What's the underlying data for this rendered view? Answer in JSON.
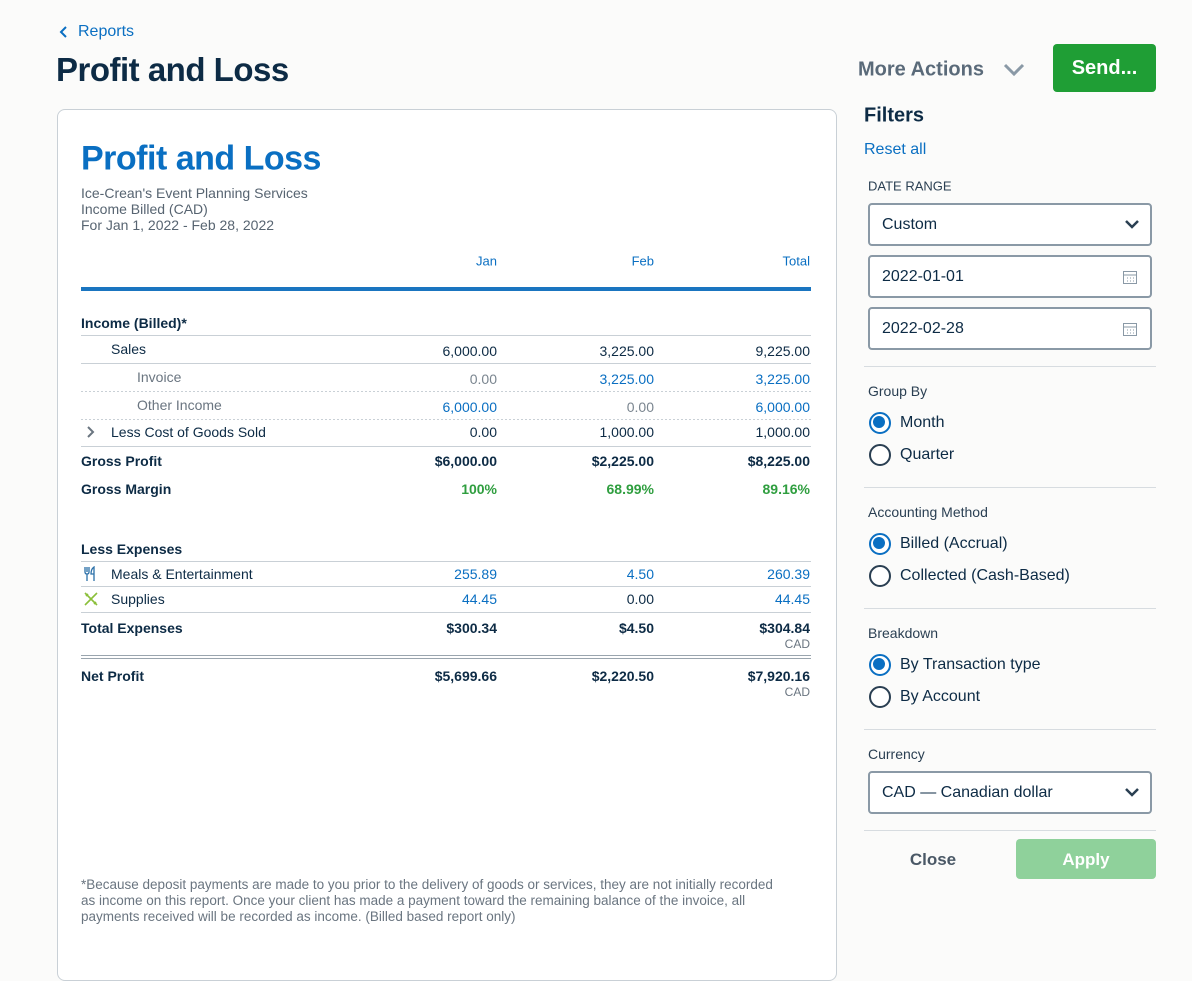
{
  "header": {
    "back_link": "Reports",
    "title": "Profit and Loss",
    "more_actions": "More Actions",
    "send_button": "Send..."
  },
  "report": {
    "title": "Profit and Loss",
    "company": "Ice-Crean's Event Planning Services",
    "basis": "Income Billed (CAD)",
    "period": "For Jan 1, 2022 - Feb 28, 2022",
    "columns": [
      "Jan",
      "Feb",
      "Total"
    ],
    "rows": [
      {
        "label": "Income (Billed)*"
      },
      {
        "label": "Sales",
        "values": [
          "6,000.00",
          "3,225.00",
          "9,225.00"
        ]
      },
      {
        "label": "Invoice",
        "values": [
          "0.00",
          "3,225.00",
          "3,225.00"
        ]
      },
      {
        "label": "Other Income",
        "values": [
          "6,000.00",
          "0.00",
          "6,000.00"
        ]
      },
      {
        "label": "Less Cost of Goods Sold",
        "values": [
          "0.00",
          "1,000.00",
          "1,000.00"
        ]
      },
      {
        "label": "Gross Profit",
        "values": [
          "$6,000.00",
          "$2,225.00",
          "$8,225.00"
        ]
      },
      {
        "label": "Gross Margin",
        "values": [
          "100%",
          "68.99%",
          "89.16%"
        ]
      },
      {
        "label": "Less Expenses"
      },
      {
        "label": "Meals & Entertainment",
        "values": [
          "255.89",
          "4.50",
          "260.39"
        ]
      },
      {
        "label": "Supplies",
        "values": [
          "44.45",
          "0.00",
          "44.45"
        ]
      },
      {
        "label": "Total Expenses",
        "values": [
          "$300.34",
          "$4.50",
          "$304.84"
        ],
        "note": "CAD"
      },
      {
        "label": "Net Profit",
        "values": [
          "$5,699.66",
          "$2,220.50",
          "$7,920.16"
        ],
        "note": "CAD"
      }
    ],
    "footnote": "*Because deposit payments are made to you prior to the delivery of goods or services, they are not initially recorded as income on this report. Once your client has made a payment toward the remaining balance of the invoice, all payments received will be recorded as income. (Billed based report only)"
  },
  "filters": {
    "title": "Filters",
    "reset": "Reset all",
    "date_range": {
      "label": "DATE RANGE",
      "selected": "Custom",
      "start": "2022-01-01",
      "end": "2022-02-28"
    },
    "group_by": {
      "label": "Group By",
      "options": [
        "Month",
        "Quarter"
      ]
    },
    "accounting_method": {
      "label": "Accounting Method",
      "options": [
        "Billed (Accrual)",
        "Collected (Cash-Based)"
      ]
    },
    "breakdown": {
      "label": "Breakdown",
      "options": [
        "By Transaction type",
        "By Account"
      ]
    },
    "currency": {
      "label": "Currency",
      "selected": "CAD — Canadian dollar"
    },
    "close": "Close",
    "apply": "Apply"
  }
}
